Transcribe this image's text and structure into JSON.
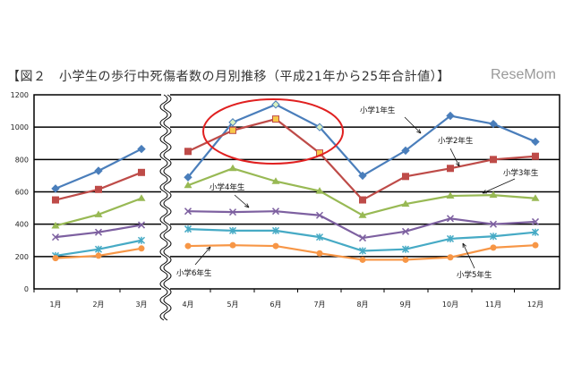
{
  "title": "【図２　小学生の歩行中死傷者数の月別推移（平成21年から25年合計値）】",
  "logo": "ReseMom",
  "chart_data": {
    "type": "line",
    "title": "【図２　小学生の歩行中死傷者数の月別推移（平成21年から25年合計値）】",
    "xlabel": "",
    "ylabel": "",
    "ylim": [
      0,
      1200
    ],
    "yticks": [
      "0",
      "200",
      "400",
      "600",
      "800",
      "1000",
      "1200"
    ],
    "grid": true,
    "categories": [
      "1月",
      "2月",
      "3月",
      "4月",
      "5月",
      "6月",
      "7月",
      "8月",
      "9月",
      "10月",
      "11月",
      "12月"
    ],
    "series": [
      {
        "name": "小学1年生",
        "color": "#4a7ebb",
        "marker": "diamond",
        "values": [
          620,
          730,
          865,
          690,
          1030,
          1140,
          1000,
          700,
          855,
          1070,
          1020,
          910
        ]
      },
      {
        "name": "小学2年生",
        "color": "#be4b48",
        "marker": "square",
        "values": [
          550,
          615,
          720,
          850,
          980,
          1050,
          840,
          550,
          695,
          745,
          800,
          820
        ]
      },
      {
        "name": "小学3年生",
        "color": "#98b954",
        "marker": "triangle",
        "values": [
          390,
          460,
          560,
          640,
          745,
          665,
          605,
          455,
          525,
          575,
          580,
          560
        ]
      },
      {
        "name": "小学4年生",
        "color": "#7d60a0",
        "marker": "x",
        "values": [
          320,
          350,
          395,
          480,
          475,
          480,
          455,
          315,
          355,
          435,
          400,
          415
        ]
      },
      {
        "name": "小学5年生",
        "color": "#46aac5",
        "marker": "star",
        "values": [
          205,
          245,
          300,
          370,
          360,
          360,
          320,
          235,
          245,
          310,
          325,
          350
        ]
      },
      {
        "name": "小学6年生",
        "color": "#f79646",
        "marker": "circle",
        "values": [
          190,
          205,
          250,
          265,
          270,
          265,
          220,
          180,
          180,
          195,
          255,
          270
        ]
      }
    ],
    "highlight": {
      "months": [
        "5月",
        "6月",
        "7月"
      ],
      "color": "#e02020"
    }
  }
}
